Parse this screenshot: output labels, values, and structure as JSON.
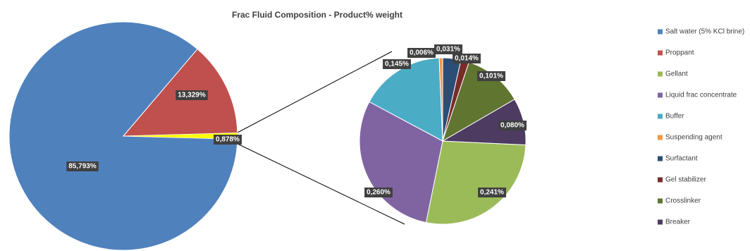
{
  "chart_data": {
    "type": "pie-of-pie",
    "title": "Frac Fluid Composition - Product% weight",
    "categories": [
      "Salt water (5% KCl brine)",
      "Proppant",
      "Gellant",
      "Liquid frac concentrate",
      "Buffer",
      "Suspending agent",
      "Surfactant",
      "Gel stabilizer",
      "Crosslinker",
      "Breaker"
    ],
    "values": [
      85.793,
      13.329,
      0.241,
      0.26,
      0.145,
      0.006,
      0.031,
      0.014,
      0.101,
      0.08
    ],
    "value_labels": [
      "85,793%",
      "13,329%",
      "0,241%",
      "0,260%",
      "0,145%",
      "0,006%",
      "0,031%",
      "0,014%",
      "0,101%",
      "0,080%"
    ],
    "colors": [
      "#4f81bd",
      "#c0504d",
      "#9bbb59",
      "#8064a2",
      "#4bacc6",
      "#f79646",
      "#2c4d75",
      "#772c2a",
      "#5f7530",
      "#4d3b62"
    ],
    "split_index": 2,
    "other_value": 0.878,
    "other_label": "0,878%",
    "other_color": "#ffff00",
    "legend": "right"
  }
}
